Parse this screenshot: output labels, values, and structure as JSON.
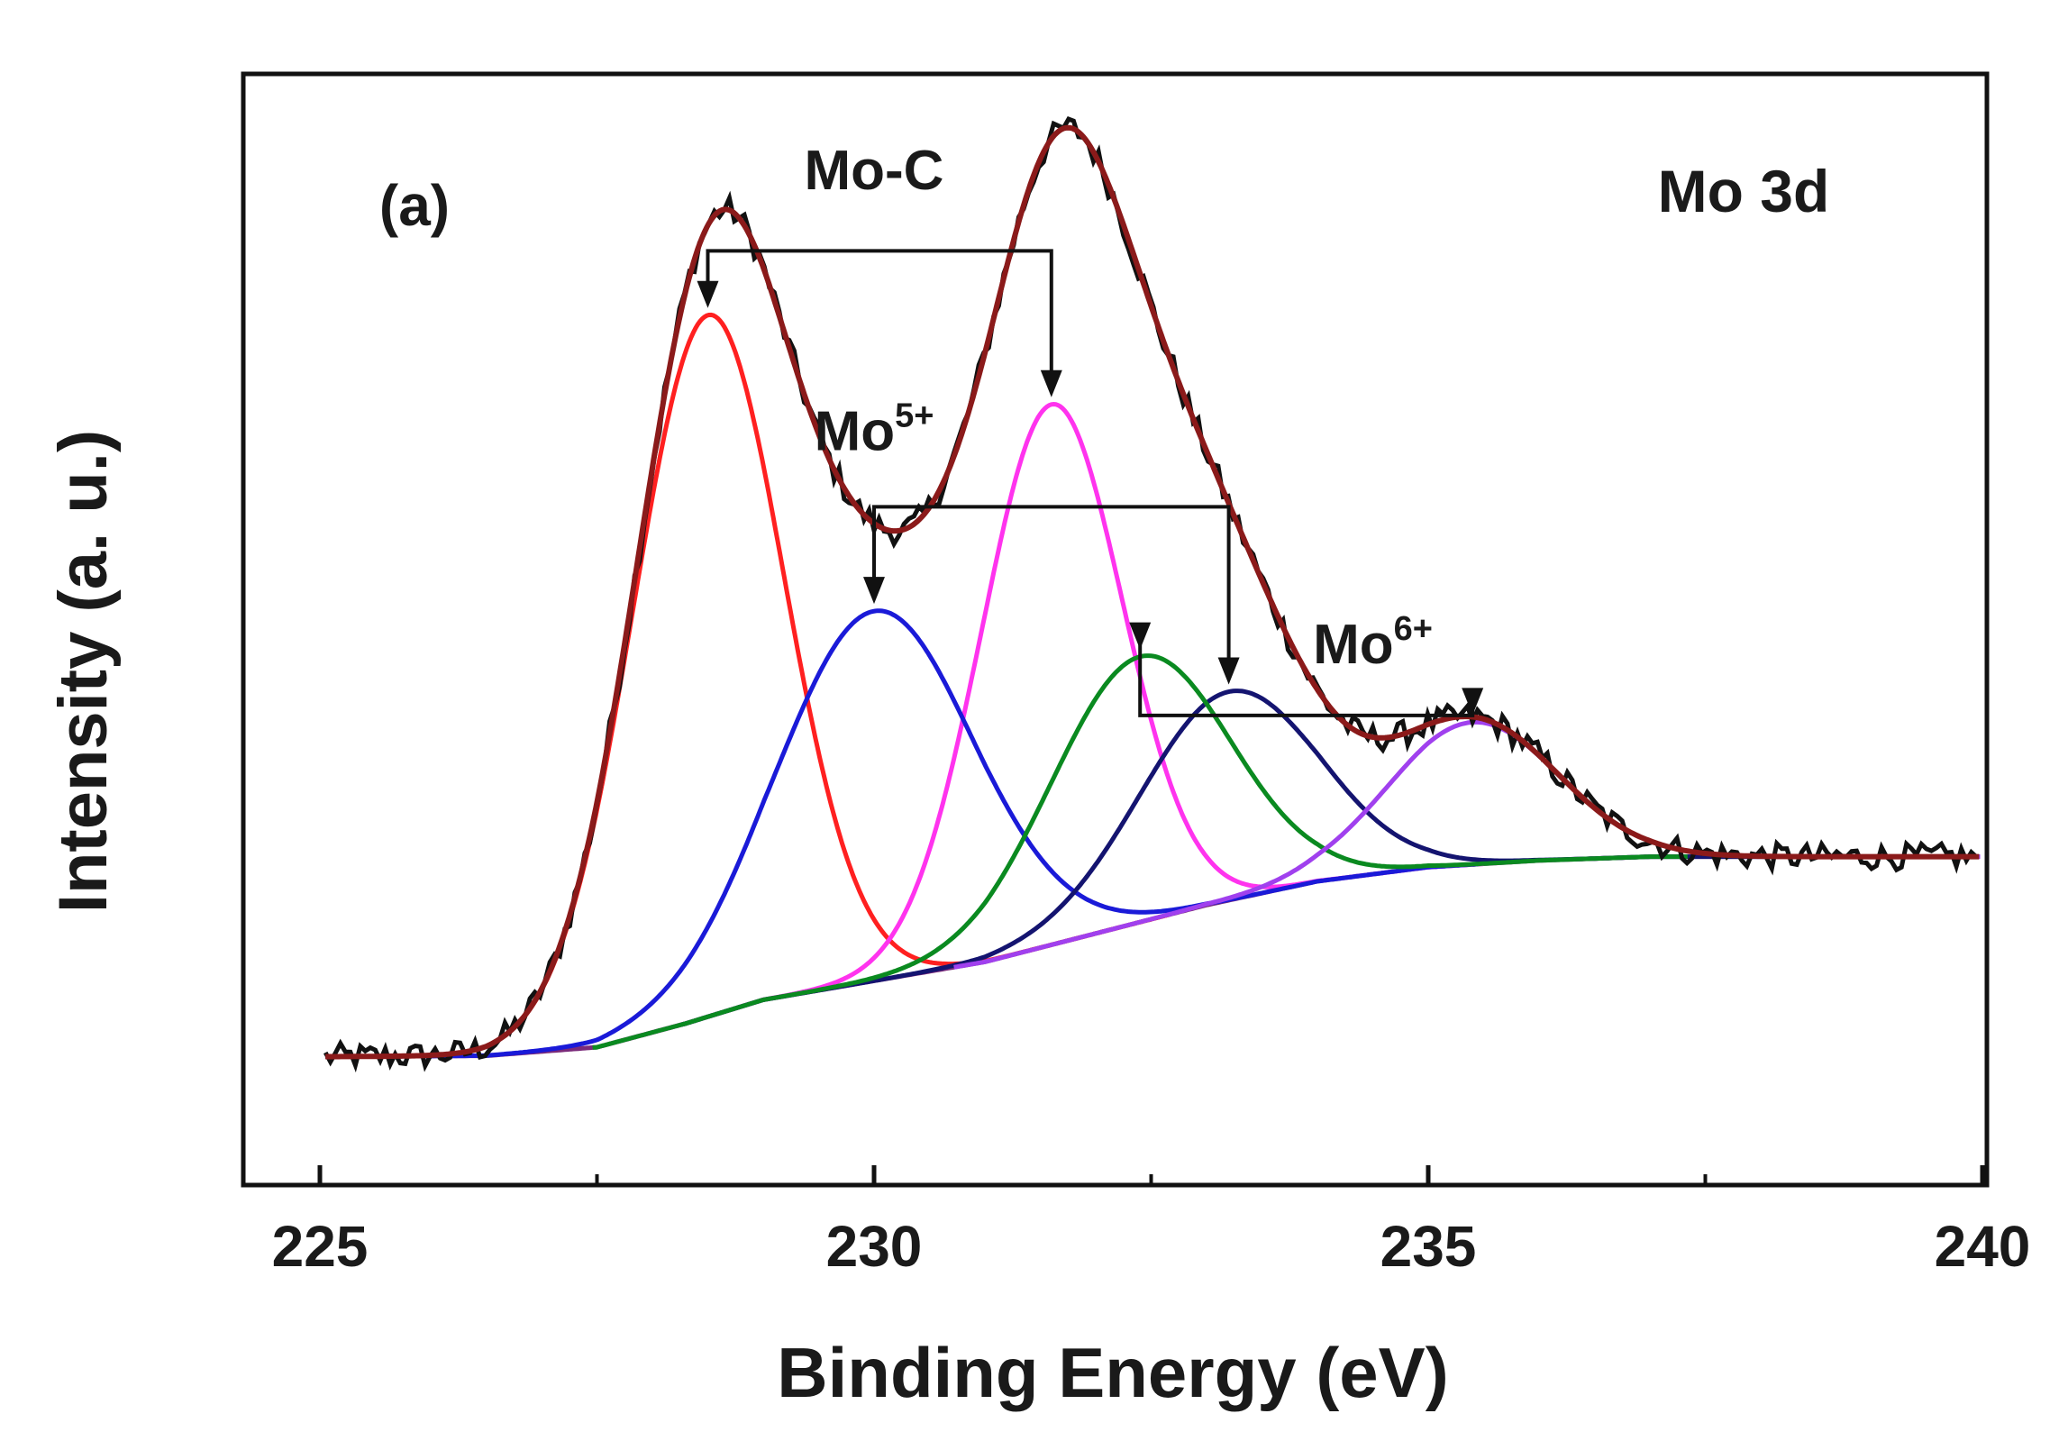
{
  "chart_data": {
    "type": "line",
    "panel_label": "(a)",
    "region_label": "Mo 3d",
    "xlabel": "Binding Energy (eV)",
    "ylabel": "Intensity (a. u.)",
    "xlim": [
      225,
      240
    ],
    "ylim": [
      0,
      1.0
    ],
    "x_ticks": [
      "225",
      "230",
      "235",
      "240"
    ],
    "x_minor_ticks": [
      227.5,
      232.5,
      237.5
    ],
    "y_ticks_shown": false,
    "grid": false,
    "colors": {
      "raw": "#111111",
      "envelope": "#8b1a1a",
      "background": "#7a2a7a",
      "moc_3d52": "#ff2020",
      "mo5_3d52": "#1a1ad8",
      "moc_3d32": "#ff33ee",
      "mo6_3d52": "#0a8a20",
      "mo5_3d32": "#141470",
      "mo6_3d32": "#a040ee"
    },
    "background": {
      "x": [
        225.0,
        226.5,
        227.5,
        228.3,
        229.0,
        230.0,
        231.0,
        232.0,
        233.0,
        234.0,
        235.0,
        236.0,
        237.0,
        240.0
      ],
      "y": [
        0.085,
        0.086,
        0.095,
        0.12,
        0.145,
        0.165,
        0.185,
        0.215,
        0.245,
        0.27,
        0.285,
        0.292,
        0.296,
        0.296
      ]
    },
    "components": [
      {
        "group": "Mo-C",
        "center": 228.5,
        "height": 0.74,
        "fwhm": 1.6
      },
      {
        "group": "Mo-C",
        "center": 231.6,
        "height": 0.57,
        "fwhm": 1.5
      },
      {
        "group": "Mo5+",
        "center": 230.0,
        "height": 0.39,
        "fwhm": 2.1
      },
      {
        "group": "Mo5+",
        "center": 233.2,
        "height": 0.22,
        "fwhm": 1.9
      },
      {
        "group": "Mo6+",
        "center": 232.4,
        "height": 0.28,
        "fwhm": 1.9
      },
      {
        "group": "Mo6+",
        "center": 235.4,
        "height": 0.15,
        "fwhm": 1.8
      }
    ],
    "annotations": [
      {
        "label_main": "Mo-C",
        "label_sup": "",
        "x1": 228.5,
        "x2": 231.6,
        "bracket_y": 0.935,
        "label_x": 230.0,
        "label_y": 1.0
      },
      {
        "label_main": "Mo",
        "label_sup": "5+",
        "x1": 230.0,
        "x2": 233.2,
        "bracket_y": 0.665,
        "label_x": 230.0,
        "label_y": 0.725
      },
      {
        "label_main": "Mo",
        "label_sup": "6+",
        "x1": 232.4,
        "x2": 235.4,
        "bracket_y": 0.445,
        "label_x": 234.5,
        "label_y": 0.5
      }
    ]
  }
}
